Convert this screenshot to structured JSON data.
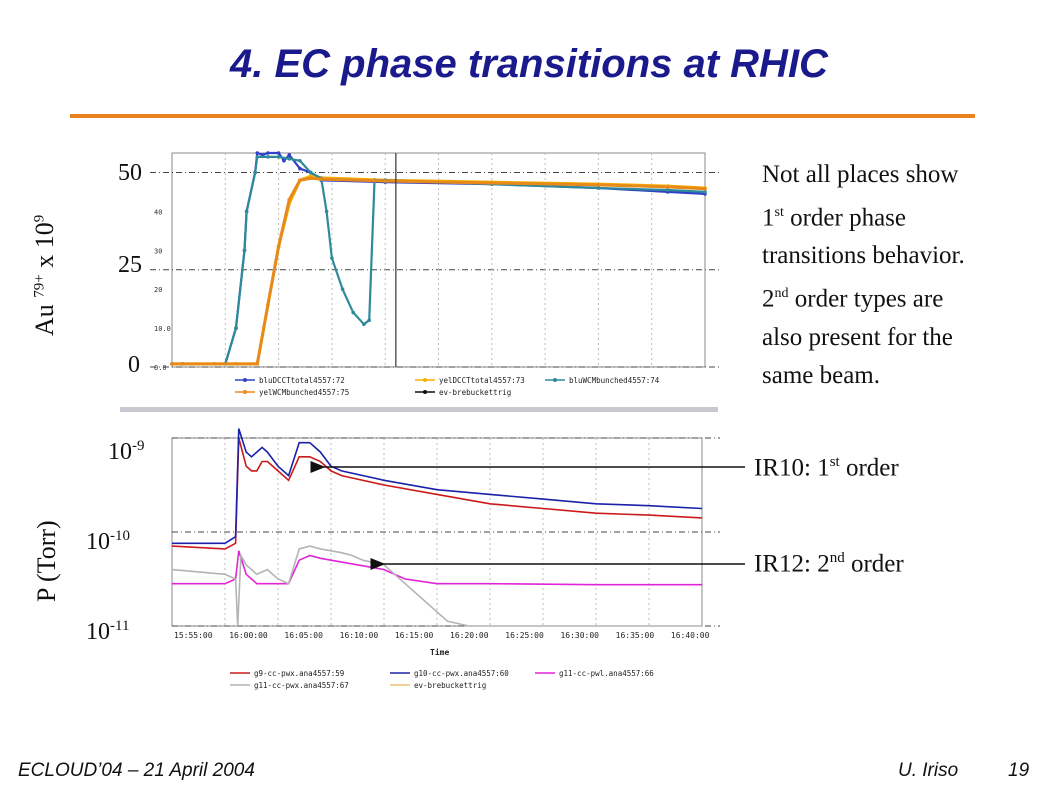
{
  "slide": {
    "title": "4. EC phase transitions at RHIC",
    "footer_left": "ECLOUD’04 – 21 April 2004",
    "footer_author": "U. Iriso",
    "footer_page": "19"
  },
  "side_text": {
    "l1": "Not all places show",
    "l2_pre": "1",
    "l2_sup": "st",
    "l2_post": " order phase",
    "l3": "transitions behavior.",
    "l4_pre": "2",
    "l4_sup": "nd",
    "l4_post": " order types are",
    "l5": "also present for the",
    "l6": "same beam."
  },
  "annotations": {
    "ir10_pre": "IR10: 1",
    "ir10_sup": "st",
    "ir10_post": " order",
    "ir12_pre": "IR12: 2",
    "ir12_sup": "nd",
    "ir12_post": " order"
  },
  "colors": {
    "title": "#1a1a8c",
    "rule": "#e8821e"
  },
  "chart_data": [
    {
      "type": "line",
      "ylabel_base": "Au",
      "ylabel_sup": "79+",
      "ylabel_mid": " x 10",
      "ylabel_sup2": "9",
      "yticks_outer": [
        "50",
        "25",
        "0"
      ],
      "yticks_inner": [
        "40",
        "30",
        "20",
        "10.0",
        "0.0"
      ],
      "ylim": [
        0,
        55
      ],
      "xlim": [
        0,
        50
      ],
      "series": [
        {
          "name": "bluDCCTtotal4557:72",
          "color": "#3040c8",
          "x": [
            0,
            1,
            5,
            6,
            6.8,
            7,
            7.8,
            8,
            8.5,
            9,
            10,
            10.5,
            11,
            12,
            13,
            14,
            20,
            30,
            40,
            46.5,
            50
          ],
          "y": [
            0.8,
            0.8,
            0.8,
            10,
            30,
            40,
            50,
            55,
            54.5,
            55,
            55,
            53,
            54.5,
            51,
            50,
            48,
            47.5,
            47,
            46,
            45,
            44.5
          ]
        },
        {
          "name": "yelDCCTtotal4557:73",
          "color": "#f5b000",
          "x": [
            0,
            4,
            6,
            8,
            9,
            10,
            11,
            12,
            13,
            14,
            20,
            30,
            40,
            46.5,
            50
          ],
          "y": [
            0.8,
            0.8,
            0.8,
            0.8,
            16,
            31,
            42,
            48,
            49,
            48.6,
            48,
            47.5,
            47,
            46.5,
            46
          ]
        },
        {
          "name": "bluWCMbunched4557:74",
          "color": "#2e8a9a",
          "x": [
            0,
            1,
            5,
            6,
            6.8,
            7,
            7.8,
            8,
            9,
            10,
            11,
            12,
            13,
            14,
            14.5,
            15,
            16,
            17,
            18,
            18.5,
            19,
            20,
            30,
            40,
            46.5,
            50
          ],
          "y": [
            0.8,
            0.8,
            0.8,
            10,
            30,
            40,
            50,
            54,
            54,
            54,
            53.5,
            53,
            50,
            48.5,
            40,
            28,
            20,
            14,
            11,
            12,
            48,
            48,
            47,
            46,
            45.5,
            45
          ]
        },
        {
          "name": "yelWCMbunched4557:75",
          "color": "#e88a1a",
          "x": [
            0,
            4,
            6,
            8,
            9,
            10,
            11,
            12,
            13,
            14,
            20,
            30,
            40,
            46.5,
            50
          ],
          "y": [
            0.8,
            0.8,
            0.8,
            0.8,
            16,
            31,
            43,
            48,
            48.5,
            48.3,
            47.8,
            47.3,
            46.8,
            46.3,
            45.8
          ]
        },
        {
          "name": "ev-brebuckettrig",
          "color": "#111111",
          "x": [],
          "y": []
        }
      ],
      "marker_line_x": 21
    },
    {
      "type": "line",
      "ylabel": "P (Torr)",
      "yticks": [
        {
          "base": "10",
          "exp": "-9"
        },
        {
          "base": "10",
          "exp": "-10"
        },
        {
          "base": "10",
          "exp": "-11"
        }
      ],
      "ylim_log10": [
        -11,
        -9
      ],
      "xlabel": "Time",
      "xticks": [
        "15:55:00",
        "16:00:00",
        "16:05:00",
        "16:10:00",
        "16:15:00",
        "16:20:00",
        "16:25:00",
        "16:30:00",
        "16:35:00",
        "16:40:00"
      ],
      "xlim": [
        0,
        50
      ],
      "series": [
        {
          "name": "g9-cc-pwx.ana4557:59",
          "color": "#cc1a1a",
          "x": [
            0,
            5,
            6,
            6.3,
            7,
            7.5,
            8,
            8.5,
            9,
            10,
            11,
            12,
            13,
            14,
            15,
            16,
            20,
            25,
            30,
            35,
            40,
            45,
            50
          ],
          "y": [
            -10.15,
            -10.18,
            -10.12,
            -9.0,
            -9.3,
            -9.35,
            -9.35,
            -9.25,
            -9.25,
            -9.35,
            -9.45,
            -9.2,
            -9.2,
            -9.25,
            -9.35,
            -9.4,
            -9.5,
            -9.6,
            -9.7,
            -9.75,
            -9.8,
            -9.82,
            -9.85
          ]
        },
        {
          "name": "g10-cc-pwx.ana4557:60",
          "color": "#1a22aa",
          "x": [
            0,
            5,
            6,
            6.3,
            7,
            7.5,
            8,
            8.5,
            9,
            10,
            11,
            12,
            13,
            14,
            15,
            16,
            20,
            25,
            30,
            35,
            40,
            45,
            50
          ],
          "y": [
            -10.12,
            -10.12,
            -10.05,
            -8.9,
            -9.15,
            -9.2,
            -9.15,
            -9.1,
            -9.15,
            -9.3,
            -9.4,
            -9.05,
            -9.05,
            -9.15,
            -9.3,
            -9.35,
            -9.45,
            -9.55,
            -9.6,
            -9.65,
            -9.7,
            -9.72,
            -9.75
          ]
        },
        {
          "name": "g11-cc-pwl.ana4557:66",
          "color": "#e024d8",
          "x": [
            0,
            5,
            6,
            6.3,
            7,
            8,
            9,
            10,
            11,
            12,
            13,
            14,
            15,
            16,
            20,
            22,
            25,
            30,
            40,
            50
          ],
          "y": [
            -10.55,
            -10.55,
            -10.5,
            -10.2,
            -10.45,
            -10.55,
            -10.55,
            -10.55,
            -10.55,
            -10.3,
            -10.25,
            -10.28,
            -10.3,
            -10.32,
            -10.4,
            -10.5,
            -10.55,
            -10.55,
            -10.56,
            -10.56
          ]
        },
        {
          "name": "g11-cc-pwx.ana4557:67",
          "color": "#b4b4b4",
          "x": [
            0,
            5,
            6,
            6.2,
            6.5,
            7,
            8,
            9,
            10,
            11,
            12,
            13,
            14,
            15,
            16,
            17,
            18,
            20,
            22,
            24,
            26,
            28,
            30,
            40,
            50
          ],
          "y": [
            -10.4,
            -10.45,
            -10.5,
            -11,
            -10.25,
            -10.35,
            -10.45,
            -10.4,
            -10.5,
            -10.55,
            -10.18,
            -10.15,
            -10.18,
            -10.2,
            -10.22,
            -10.25,
            -10.3,
            -10.35,
            -10.55,
            -10.75,
            -10.95,
            -11,
            -11,
            -11,
            -11
          ]
        },
        {
          "name": "ev-brebuckettrig",
          "color": "#f0c070",
          "x": [],
          "y": []
        }
      ]
    }
  ]
}
